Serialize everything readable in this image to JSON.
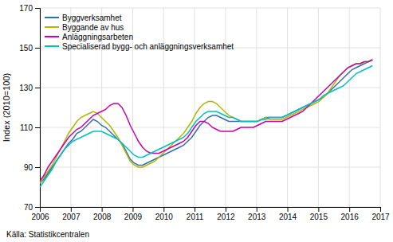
{
  "chart_data": {
    "type": "line",
    "ylabel": "Index (2010=100)",
    "source": "Källa: Statistikcentralen",
    "x": [
      2006,
      2006.1327,
      2006.2654,
      2006.3981,
      2006.5309,
      2006.6636,
      2006.7963,
      2006.929,
      2007.0617,
      2007.1944,
      2007.3272,
      2007.4599,
      2007.5926,
      2007.7253,
      2007.858,
      2007.9907,
      2008.1235,
      2008.2562,
      2008.3889,
      2008.5216,
      2008.6543,
      2008.787,
      2008.9198,
      2009.0525,
      2009.1852,
      2009.3179,
      2009.4506,
      2009.5833,
      2009.716,
      2009.8488,
      2009.9815,
      2010.1142,
      2010.2469,
      2010.3796,
      2010.5123,
      2010.6451,
      2010.7778,
      2010.9105,
      2011.0432,
      2011.1759,
      2011.3086,
      2011.4414,
      2011.5741,
      2011.7068,
      2011.8395,
      2011.9722,
      2012.1049,
      2012.2377,
      2012.3704,
      2012.5031,
      2012.6358,
      2012.7685,
      2012.9012,
      2013.034,
      2013.1667,
      2013.2994,
      2013.4321,
      2013.5648,
      2013.6975,
      2013.8302,
      2013.963,
      2014.0957,
      2014.2284,
      2014.3611,
      2014.4938,
      2014.6265,
      2014.7593,
      2014.892,
      2015.0247,
      2015.1574,
      2015.2901,
      2015.4228,
      2015.5556,
      2015.6883,
      2015.821,
      2015.9537,
      2016.0864,
      2016.2191,
      2016.3519,
      2016.4846,
      2016.6173,
      2016.75
    ],
    "series": [
      {
        "name": "Byggverksamhet",
        "color": "#3070b0",
        "values": [
          82,
          84,
          87,
          90,
          93,
          96,
          99,
          102,
          104,
          107,
          108,
          110,
          112,
          114,
          113,
          111,
          110,
          108,
          106,
          104,
          102,
          98,
          94,
          92,
          91,
          91,
          92,
          93,
          94,
          95,
          96,
          97,
          98,
          99,
          100,
          101,
          103,
          105,
          108,
          111,
          113,
          115,
          116,
          116,
          115,
          114,
          113,
          113,
          113,
          113,
          113,
          113,
          113,
          113,
          114,
          115,
          115,
          115,
          115,
          115,
          116,
          117,
          118,
          119,
          120,
          121,
          122,
          123,
          124,
          125,
          127,
          129,
          131,
          133,
          135,
          137,
          139,
          140,
          141,
          142,
          143,
          144
        ]
      },
      {
        "name": "Byggande av hus",
        "color": "#b0b800",
        "values": [
          82,
          85,
          88,
          91,
          95,
          99,
          103,
          107,
          110,
          113,
          115,
          116,
          117,
          118,
          117,
          115,
          113,
          111,
          108,
          105,
          101,
          97,
          93,
          91,
          90,
          90,
          91,
          92,
          93,
          95,
          97,
          99,
          101,
          103,
          105,
          107,
          110,
          113,
          117,
          120,
          122,
          123,
          123,
          122,
          120,
          118,
          116,
          115,
          114,
          113,
          113,
          113,
          113,
          113,
          114,
          115,
          114,
          114,
          114,
          114,
          115,
          116,
          117,
          118,
          119,
          120,
          121,
          122,
          123,
          125,
          127,
          130,
          133,
          136,
          138,
          140,
          141,
          142,
          142,
          143,
          143,
          144
        ]
      },
      {
        "name": "Anläggningsarbeten",
        "color": "#cc00aa",
        "values": [
          83,
          86,
          90,
          93,
          96,
          99,
          102,
          105,
          107,
          109,
          110,
          112,
          114,
          116,
          117,
          118,
          119,
          121,
          122,
          122,
          120,
          116,
          111,
          107,
          103,
          100,
          98,
          97,
          97,
          97,
          98,
          99,
          100,
          101,
          102,
          103,
          105,
          108,
          111,
          113,
          113,
          112,
          110,
          109,
          108,
          108,
          108,
          108,
          109,
          110,
          110,
          110,
          110,
          111,
          112,
          113,
          113,
          113,
          113,
          113,
          114,
          115,
          116,
          117,
          118,
          120,
          122,
          124,
          126,
          128,
          130,
          132,
          134,
          136,
          138,
          140,
          141,
          142,
          142,
          143,
          143,
          144
        ]
      },
      {
        "name": "Specialiserad bygg- och anläggningsverksamhet",
        "color": "#00c0c0",
        "values": [
          80,
          83,
          86,
          89,
          93,
          96,
          99,
          101,
          103,
          104,
          105,
          106,
          107,
          108,
          108,
          108,
          107,
          106,
          105,
          104,
          102,
          100,
          98,
          96,
          95,
          95,
          96,
          97,
          98,
          99,
          100,
          101,
          102,
          103,
          104,
          105,
          107,
          110,
          113,
          115,
          117,
          118,
          118,
          118,
          117,
          116,
          115,
          115,
          114,
          113,
          113,
          113,
          113,
          113,
          114,
          114,
          115,
          115,
          115,
          115,
          116,
          117,
          118,
          119,
          120,
          121,
          122,
          123,
          124,
          126,
          127,
          128,
          129,
          130,
          131,
          133,
          135,
          137,
          138,
          139,
          140,
          141
        ]
      }
    ],
    "xlim": [
      2006.0,
      2017.0
    ],
    "xticks": [
      2006,
      2007,
      2008,
      2009,
      2010,
      2011,
      2012,
      2013,
      2014,
      2015,
      2016,
      2017
    ],
    "ylim": [
      70,
      170
    ],
    "yticks": [
      70,
      90,
      110,
      130,
      150,
      170
    ],
    "grid": true,
    "legend": "upper left"
  }
}
